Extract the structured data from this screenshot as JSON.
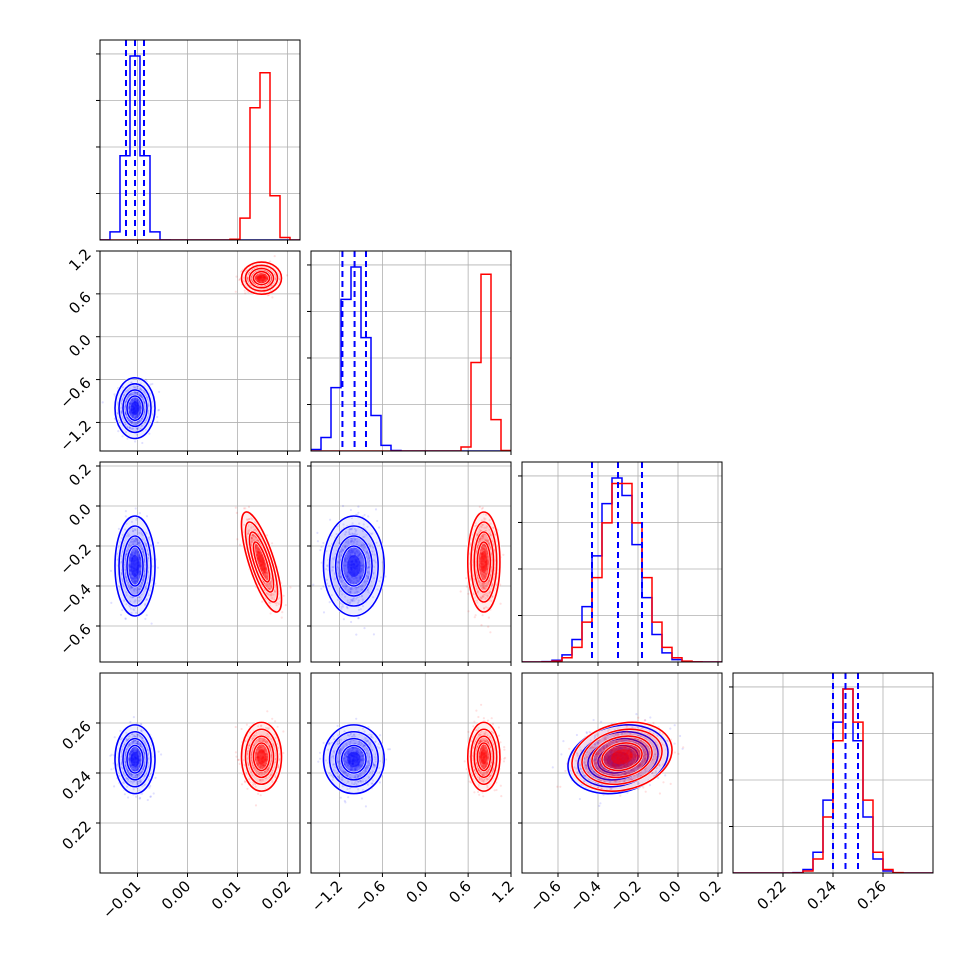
{
  "chart_data": {
    "type": "corner",
    "title": "",
    "parameters": [
      {
        "range": [
          -0.0175,
          0.0225
        ],
        "ticks": [
          -0.01,
          0.0,
          0.01,
          0.02
        ],
        "tick_labels": [
          "−0.01",
          "0.00",
          "0.01",
          "0.02"
        ]
      },
      {
        "range": [
          -1.6,
          1.2
        ],
        "ticks": [
          -1.2,
          -0.6,
          0.0,
          0.6,
          1.2
        ],
        "tick_labels": [
          "−1.2",
          "−0.6",
          "0.0",
          "0.6",
          "1.2"
        ]
      },
      {
        "range": [
          -0.78,
          0.22
        ],
        "ticks": [
          -0.6,
          -0.4,
          -0.2,
          0.0,
          0.2
        ],
        "tick_labels": [
          "−0.6",
          "−0.4",
          "−0.2",
          "0.0",
          "0.2"
        ]
      },
      {
        "range": [
          0.2,
          0.28
        ],
        "ticks": [
          0.22,
          0.24,
          0.26
        ],
        "tick_labels": [
          "0.22",
          "0.24",
          "0.26"
        ]
      }
    ],
    "series": [
      {
        "color": "#0000ff",
        "mean": [
          -0.0105,
          -1.0,
          -0.3,
          0.2455
        ],
        "sigma": [
          0.0016,
          0.17,
          0.1,
          0.0055
        ],
        "quantiles": [
          [
            -0.0123,
            -0.0105,
            -0.0087
          ],
          [
            -1.16,
            -0.99,
            -0.83
          ],
          [
            -0.43,
            -0.3,
            -0.18
          ],
          [
            0.24,
            0.245,
            0.25
          ]
        ],
        "rho": {
          "0_2": 0.0,
          "1_2": 0.0,
          "2_3": 0.2
        }
      },
      {
        "color": "#ff0000",
        "mean": [
          0.0148,
          0.82,
          -0.28,
          0.2465
        ],
        "sigma": [
          0.0016,
          0.09,
          0.1,
          0.0055
        ],
        "rho": {
          "0_2": -0.75,
          "1_2": 0.0,
          "2_3": 0.2
        }
      }
    ],
    "quantile_lines": "dashed",
    "grid": true
  }
}
